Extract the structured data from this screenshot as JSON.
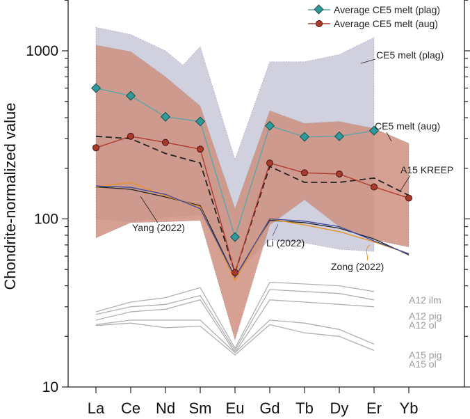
{
  "chart_data": {
    "type": "line",
    "title": "",
    "xlabel": "",
    "ylabel": "Chondrite-normalized value",
    "yscale": "log",
    "ylim": [
      10,
      2500
    ],
    "ytick_labels": [
      "10",
      "100",
      "1000"
    ],
    "ytick_values": [
      10,
      100,
      1000
    ],
    "categories": [
      "La",
      "Ce",
      "Nd",
      "Sm",
      "Eu",
      "Gd",
      "Tb",
      "Dy",
      "Er",
      "Yb"
    ],
    "bands": [
      {
        "name": "CE5 melt (plag)",
        "color": "#c8c8d8",
        "upper": [
          1380,
          1250,
          1000,
          1060,
          225,
          860,
          860,
          950,
          1200,
          null
        ],
        "lower": [
          100,
          96,
          102,
          106,
          48,
          75,
          72,
          66,
          64,
          null
        ],
        "extra_upper_points": [
          {
            "x": 2.5,
            "y": 820
          }
        ]
      },
      {
        "name": "CE5 melt (aug)",
        "color": "#cf9080",
        "upper": [
          1080,
          990,
          700,
          470,
          115,
          440,
          370,
          380,
          345,
          282
        ],
        "lower": [
          77,
          95,
          96,
          98,
          19,
          92,
          130,
          90,
          75,
          68
        ]
      }
    ],
    "series": [
      {
        "name": "Average CE5 melt (plag)",
        "color": "#5aa6a8",
        "marker": "diamond",
        "marker_color": "#2f9a9a",
        "values": [
          600,
          540,
          405,
          380,
          78,
          358,
          308,
          310,
          335,
          null
        ]
      },
      {
        "name": "Average CE5 melt (aug)",
        "color": "#b03a2e",
        "marker": "circle",
        "marker_color": "#a83a2e",
        "values": [
          265,
          310,
          285,
          260,
          48,
          215,
          188,
          185,
          155,
          133
        ]
      },
      {
        "name": "A15 KREEP",
        "color": "#222222",
        "dashed": true,
        "values": [
          310,
          300,
          245,
          215,
          48,
          205,
          165,
          165,
          175,
          138
        ]
      },
      {
        "name": "Yang (2022)",
        "color": "#222222",
        "values": [
          155,
          150,
          135,
          120,
          45,
          98,
          95,
          88,
          76,
          61
        ]
      },
      {
        "name": "Zong (2022)",
        "color": "#e89020",
        "values": [
          155,
          165,
          137,
          118,
          43,
          100,
          92,
          84,
          73,
          62
        ]
      },
      {
        "name": "Li (2022)",
        "color": "#3a4aa0",
        "values": [
          157,
          154,
          140,
          115,
          45,
          100,
          97,
          90,
          74,
          62
        ]
      },
      {
        "name": "A12 ilm",
        "color": "#b0b0b0",
        "values": [
          28,
          32,
          34,
          39,
          17,
          42,
          41,
          40,
          37,
          null
        ]
      },
      {
        "name": "A12 pig",
        "color": "#b0b0b0",
        "values": [
          27,
          30,
          31,
          35,
          16.5,
          38,
          37,
          36,
          33,
          null
        ]
      },
      {
        "name": "A12 ol",
        "color": "#b0b0b0",
        "values": [
          25,
          28,
          29,
          33,
          16,
          33,
          32,
          31,
          30,
          null
        ]
      },
      {
        "name": "A15 pig",
        "color": "#b0b0b0",
        "values": [
          23.5,
          25,
          25,
          25,
          16,
          25,
          24,
          22,
          18,
          null
        ]
      },
      {
        "name": "A15 ol",
        "color": "#b0b0b0",
        "values": [
          23.2,
          24,
          22.5,
          23,
          15.5,
          23.5,
          21,
          20,
          16.5,
          null
        ]
      }
    ],
    "legend": {
      "placement": "top-right",
      "entries": [
        "Average CE5 melt (plag)",
        "Average CE5 melt (aug)"
      ]
    },
    "annotations": [
      {
        "text": "CE5 melt (plag)",
        "color": "dark"
      },
      {
        "text": "CE5 melt (aug)",
        "color": "dark"
      },
      {
        "text": "A15 KREEP",
        "color": "dark"
      },
      {
        "text": "Yang (2022)",
        "color": "dark"
      },
      {
        "text": "Li (2022)",
        "color": "dark"
      },
      {
        "text": "Zong (2022)",
        "color": "dark"
      },
      {
        "text": "A12 ilm",
        "color": "grey"
      },
      {
        "text": "A12 pig",
        "color": "grey"
      },
      {
        "text": "A12 ol",
        "color": "grey"
      },
      {
        "text": "A15 pig",
        "color": "grey"
      },
      {
        "text": "A15 ol",
        "color": "grey"
      }
    ]
  }
}
